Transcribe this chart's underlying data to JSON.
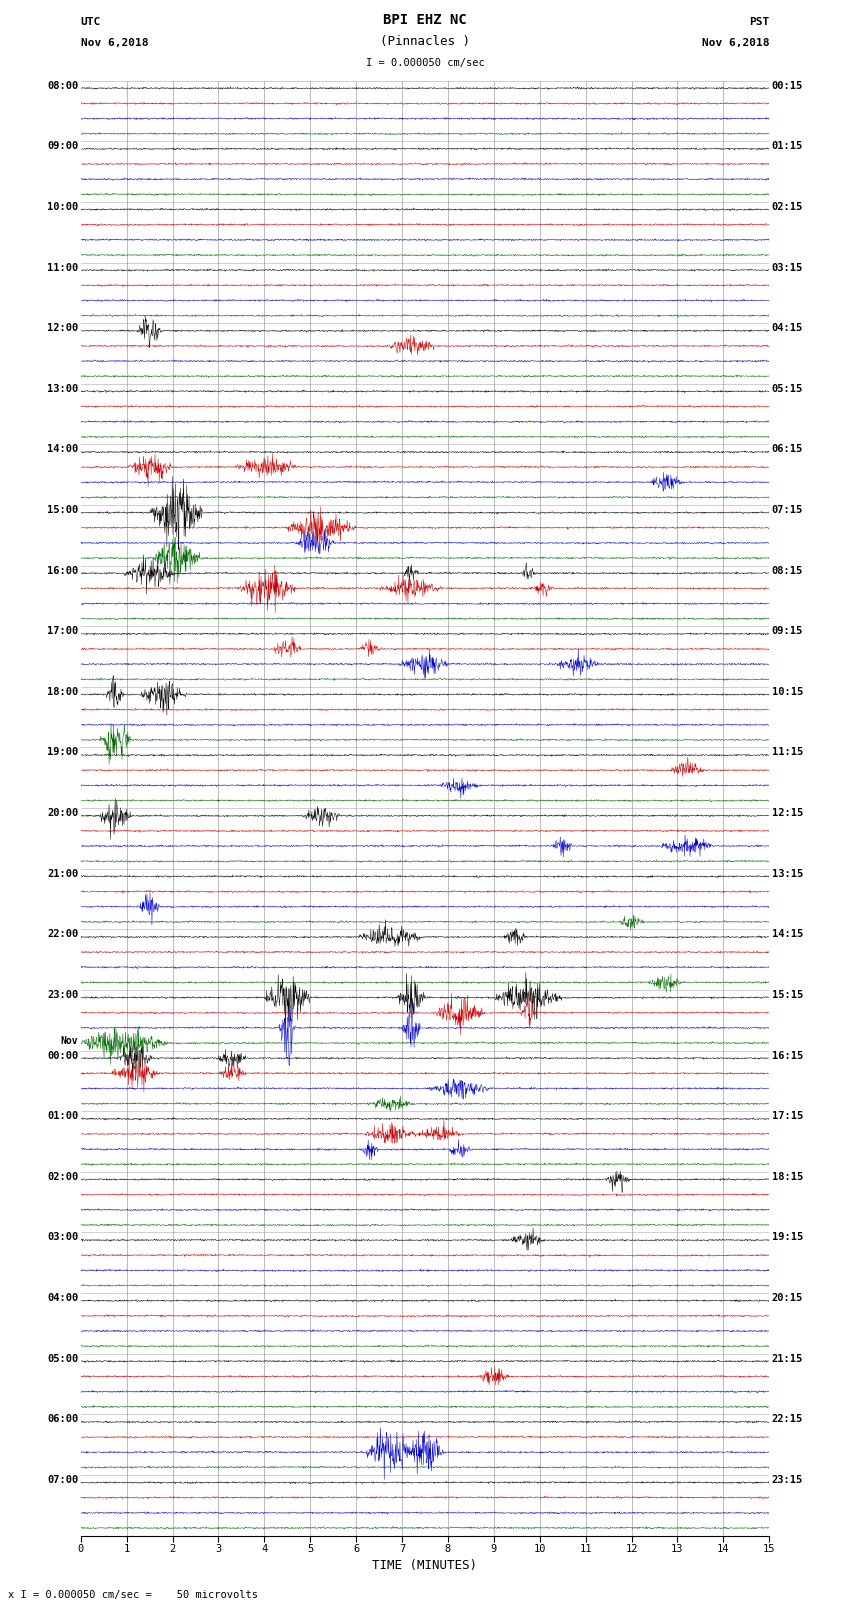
{
  "title_line1": "BPI EHZ NC",
  "title_line2": "(Pinnacles )",
  "scale_label": "I = 0.000050 cm/sec",
  "footer_label": "x I = 0.000050 cm/sec =    50 microvolts",
  "xlabel": "TIME (MINUTES)",
  "left_times": [
    "08:00",
    "09:00",
    "10:00",
    "11:00",
    "12:00",
    "13:00",
    "14:00",
    "15:00",
    "16:00",
    "17:00",
    "18:00",
    "19:00",
    "20:00",
    "21:00",
    "22:00",
    "23:00",
    "Nov\n00:00",
    "01:00",
    "02:00",
    "03:00",
    "04:00",
    "05:00",
    "06:00",
    "07:00"
  ],
  "right_times": [
    "00:15",
    "01:15",
    "02:15",
    "03:15",
    "04:15",
    "05:15",
    "06:15",
    "07:15",
    "08:15",
    "09:15",
    "10:15",
    "11:15",
    "12:15",
    "13:15",
    "14:15",
    "15:15",
    "16:15",
    "17:15",
    "18:15",
    "19:15",
    "20:15",
    "21:15",
    "22:15",
    "23:15"
  ],
  "trace_colors": [
    "#000000",
    "#cc0000",
    "#0000cc",
    "#006600"
  ],
  "bg_color": "#ffffff",
  "grid_color": "#888888",
  "num_hour_groups": 24,
  "traces_per_group": 4,
  "xlim": [
    0,
    15
  ],
  "xticks": [
    0,
    1,
    2,
    3,
    4,
    5,
    6,
    7,
    8,
    9,
    10,
    11,
    12,
    13,
    14,
    15
  ],
  "noise_amplitude": 0.06,
  "figsize": [
    8.5,
    16.13
  ],
  "dpi": 100
}
